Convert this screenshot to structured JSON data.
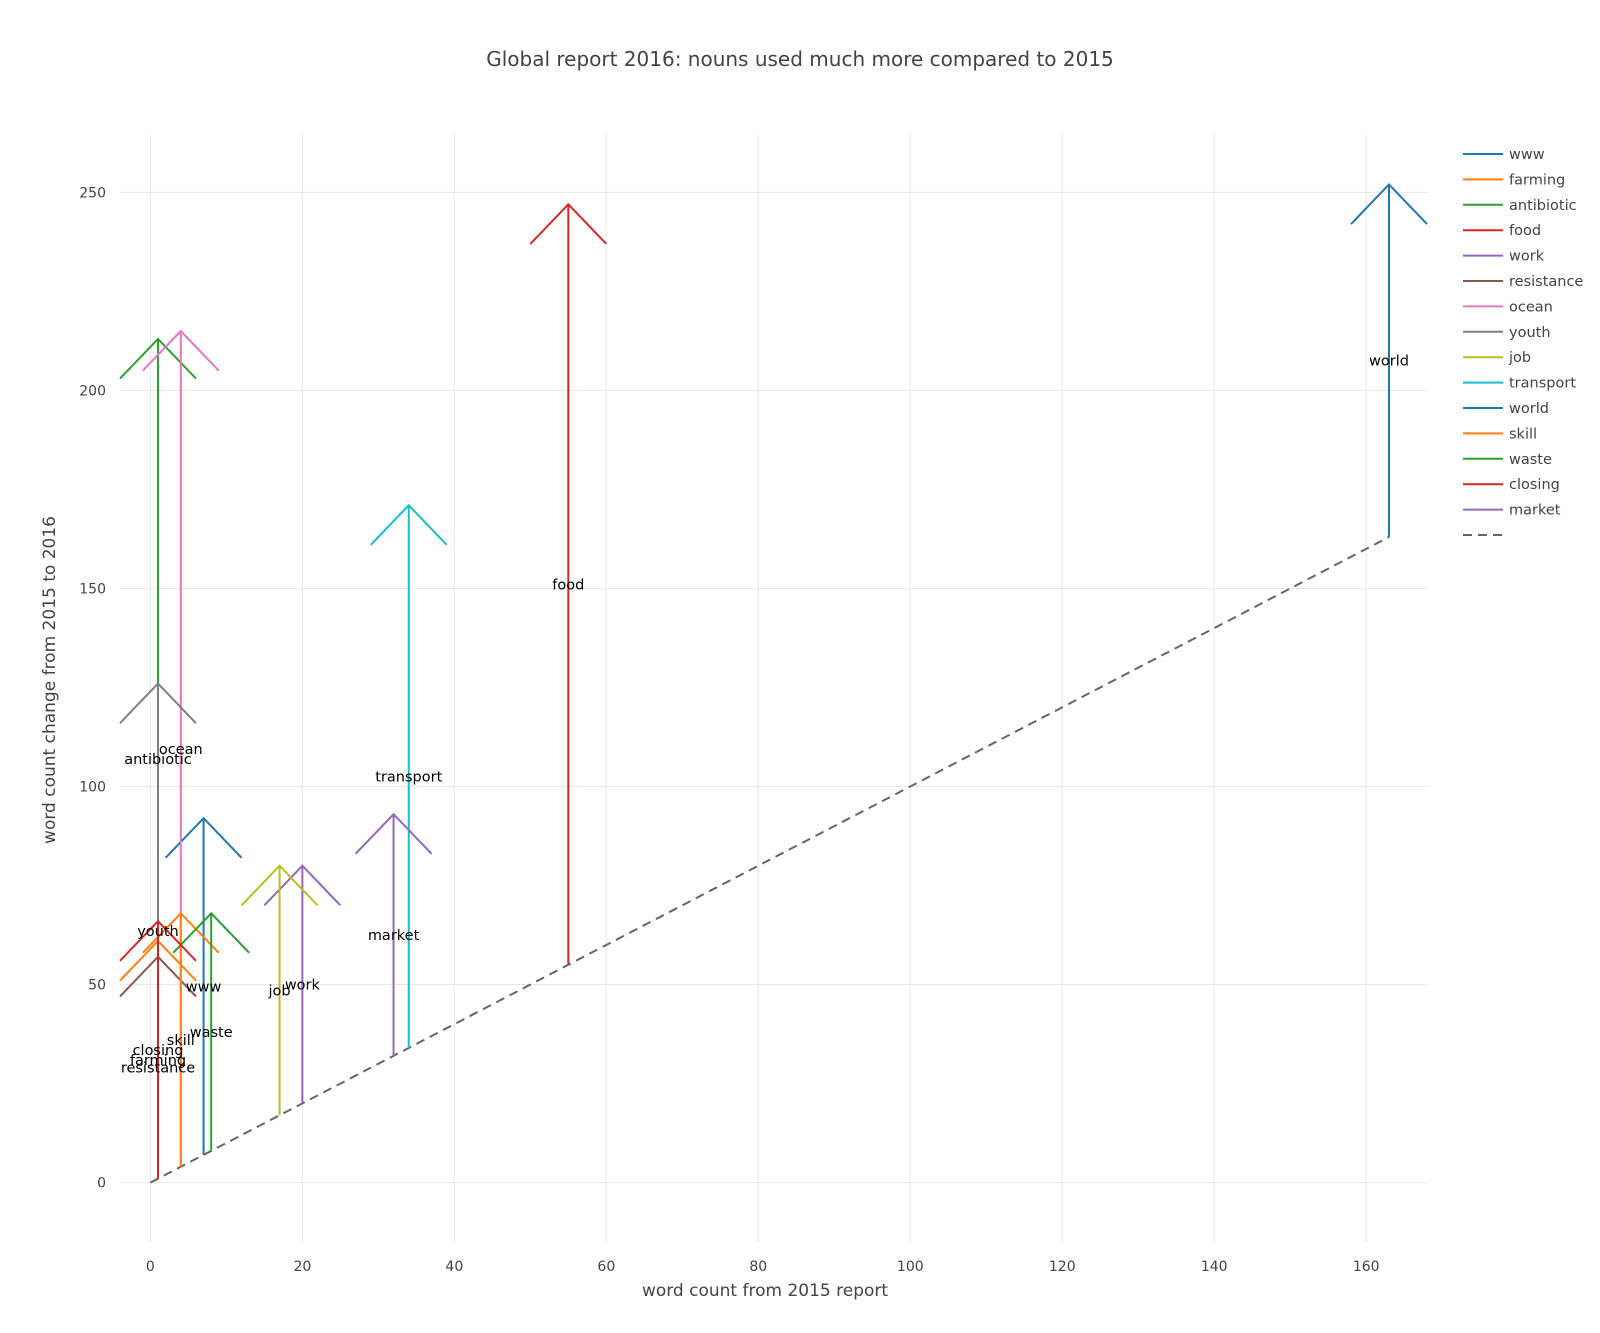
{
  "chart_data": {
    "type": "line",
    "title": "Global report 2016: nouns used much more compared to 2015",
    "xlabel": "word count from 2015 report",
    "ylabel": "word count change from 2015 to 2016",
    "xlim": [
      -4,
      168
    ],
    "ylim": [
      -15,
      265
    ],
    "x_ticks": [
      0,
      20,
      40,
      60,
      80,
      100,
      120,
      140,
      160
    ],
    "y_ticks": [
      0,
      50,
      100,
      150,
      200,
      250
    ],
    "grid": true,
    "legend_position": "right",
    "series": [
      {
        "name": "www",
        "color": "#1f77b4",
        "x": 7,
        "y0": 7,
        "y1": 92
      },
      {
        "name": "farming",
        "color": "#ff7f0e",
        "x": 1,
        "y0": 1,
        "y1": 61
      },
      {
        "name": "antibiotic",
        "color": "#2ca02c",
        "x": 1,
        "y0": 1,
        "y1": 213
      },
      {
        "name": "food",
        "color": "#d62728",
        "x": 55,
        "y0": 55,
        "y1": 247
      },
      {
        "name": "work",
        "color": "#9467bd",
        "x": 20,
        "y0": 20,
        "y1": 80
      },
      {
        "name": "resistance",
        "color": "#8c564b",
        "x": 1,
        "y0": 1,
        "y1": 57
      },
      {
        "name": "ocean",
        "color": "#e377c2",
        "x": 4,
        "y0": 4,
        "y1": 215
      },
      {
        "name": "youth",
        "color": "#7f7f7f",
        "x": 1,
        "y0": 1,
        "y1": 126
      },
      {
        "name": "job",
        "color": "#bcbd22",
        "x": 17,
        "y0": 17,
        "y1": 80
      },
      {
        "name": "transport",
        "color": "#17becf",
        "x": 34,
        "y0": 34,
        "y1": 171
      },
      {
        "name": "world",
        "color": "#1f77b4",
        "x": 163,
        "y0": 163,
        "y1": 252
      },
      {
        "name": "skill",
        "color": "#ff7f0e",
        "x": 4,
        "y0": 4,
        "y1": 68
      },
      {
        "name": "waste",
        "color": "#2ca02c",
        "x": 8,
        "y0": 8,
        "y1": 68
      },
      {
        "name": "closing",
        "color": "#d62728",
        "x": 1,
        "y0": 1,
        "y1": 66
      },
      {
        "name": "market",
        "color": "#9467bd",
        "x": 32,
        "y0": 32,
        "y1": 93
      }
    ],
    "reference_line": {
      "style": "dashed",
      "color": "#666666",
      "x": [
        0,
        163
      ],
      "y": [
        0,
        163
      ]
    }
  }
}
